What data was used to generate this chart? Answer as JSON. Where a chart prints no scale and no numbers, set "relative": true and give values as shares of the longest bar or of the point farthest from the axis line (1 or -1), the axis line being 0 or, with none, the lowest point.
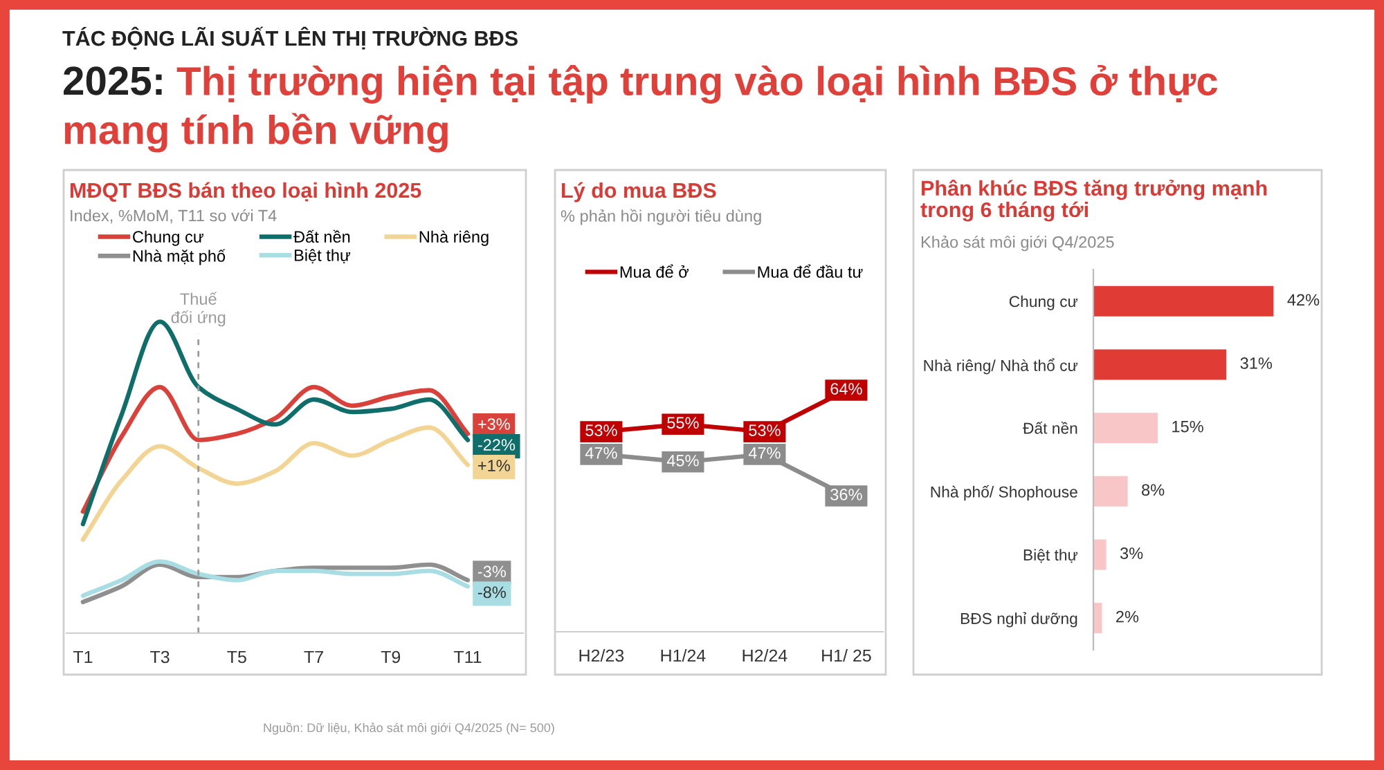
{
  "chart_data": [
    {
      "type": "other",
      "subtitle": "TÁC ĐỘNG LÃI SUẤT LÊN THỊ TRƯỜNG BĐS",
      "title": "2025: Thị trường hiện tại tập trung vào loại hình BĐS ở thực mang tính bền vững",
      "annotations": [
        "Nguồn: Dữ liệu, Khảo sát môi giới Q4/2025 (N= 500)"
      ]
    },
    {
      "type": "line",
      "title": "MĐQT BĐS bán theo loại hình 2025",
      "subtitle": "Index, %MoM, T11 so với T4",
      "relative": true,
      "categories": [
        "T1",
        null,
        "T3",
        null,
        "T5",
        null,
        "T7",
        null,
        "T9",
        null,
        "T11"
      ],
      "series": [
        {
          "name": "Chung cư",
          "color": "#d9413b",
          "values": [
            0.39,
            0.63,
            0.79,
            0.62,
            0.64,
            0.69,
            0.79,
            0.73,
            0.76,
            0.78,
            0.64
          ]
        },
        {
          "name": "Đất nền",
          "color": "#0f6e6a",
          "values": [
            0.35,
            0.7,
            1.0,
            0.79,
            0.72,
            0.67,
            0.75,
            0.71,
            0.72,
            0.75,
            0.62
          ]
        },
        {
          "name": "Nhà riêng",
          "color": "#f2d595",
          "values": [
            0.3,
            0.49,
            0.6,
            0.53,
            0.48,
            0.52,
            0.61,
            0.57,
            0.62,
            0.66,
            0.54
          ]
        },
        {
          "name": "Nhà mặt phố",
          "color": "#8f8f8f",
          "values": [
            0.1,
            0.15,
            0.22,
            0.18,
            0.18,
            0.2,
            0.21,
            0.21,
            0.21,
            0.22,
            0.17
          ]
        },
        {
          "name": "Biệt thự",
          "color": "#a7dde3",
          "values": [
            0.12,
            0.17,
            0.23,
            0.19,
            0.17,
            0.2,
            0.2,
            0.19,
            0.19,
            0.2,
            0.15
          ]
        }
      ],
      "annotations": [
        "Thuế đối ứng",
        {
          "text": "+3%",
          "x": "T11",
          "y": 0.64
        },
        {
          "text": "-22%",
          "x": "T11",
          "y": 0.62
        },
        {
          "text": "+1%",
          "x": "T11",
          "y": 0.54
        },
        {
          "text": "-3%",
          "x": "T11",
          "y": 0.17
        },
        {
          "text": "-8%",
          "x": "T11",
          "y": 0.15
        }
      ],
      "legend": "top"
    },
    {
      "type": "line",
      "title": "Lý do mua BĐS",
      "subtitle": "% phản hồi người tiêu dùng",
      "categories": [
        "H2/23",
        "H1/24",
        "H2/24",
        "H1/ 25"
      ],
      "series": [
        {
          "name": "Mua để ở",
          "color": "#c00000",
          "marker": "square",
          "values": [
            53,
            55,
            53,
            64
          ],
          "value_labels": [
            "53%",
            "55%",
            "53%",
            "64%"
          ]
        },
        {
          "name": "Mua để đầu tư",
          "color": "#8c8c8c",
          "marker": "square",
          "values": [
            47,
            45,
            47,
            36
          ],
          "value_labels": [
            "47%",
            "45%",
            "47%",
            "36%"
          ]
        }
      ],
      "tick_labels": "x",
      "legend": "top left"
    },
    {
      "type": "bar",
      "orientation": "horizontal",
      "title": "Phân khúc BĐS tăng trưởng mạnh trong 6 tháng tới",
      "subtitle": "Khảo sát môi giới Q4/2025",
      "categories": [
        "Chung cư",
        "Nhà riêng/ Nhà thổ cư",
        "Đất nền",
        "Nhà phố/ Shophouse",
        "Biệt thự",
        "BĐS nghỉ dưỡng"
      ],
      "values": [
        42,
        31,
        15,
        8,
        3,
        2
      ],
      "colors": [
        "#e03c35",
        "#e03c35",
        "#f8c6c6",
        "#f8c6c6",
        "#f8c6c6",
        "#f8c6c6"
      ],
      "value_labels": [
        "42%",
        "31%",
        "15%",
        "8%",
        "3%",
        "2%"
      ],
      "tick_labels": "y"
    }
  ]
}
